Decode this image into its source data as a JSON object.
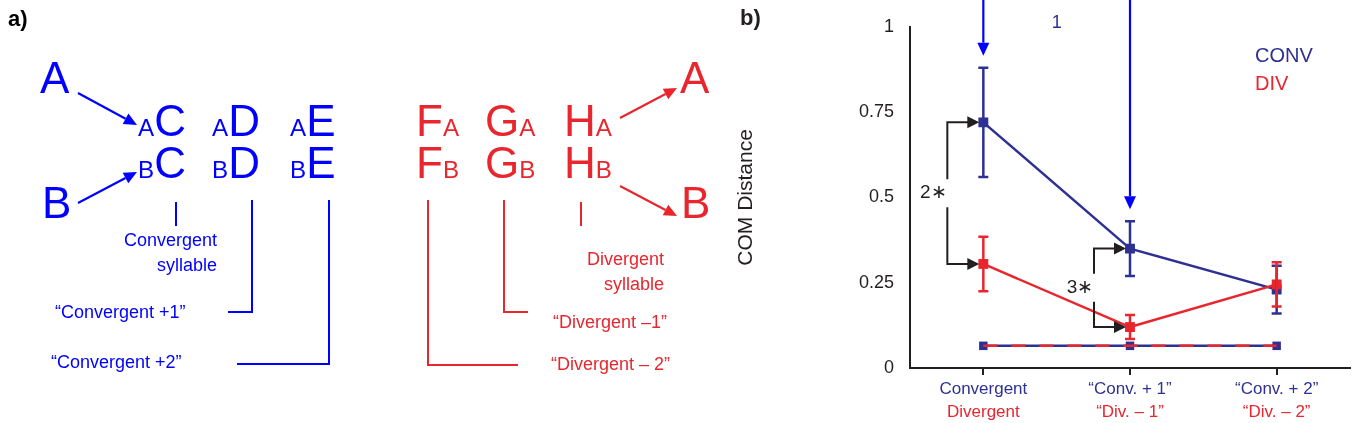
{
  "chart_data": [
    {
      "type": "other",
      "annotations": [
        "a)",
        "A",
        "B",
        "$_{A}$C",
        "$_{B}$C",
        "$_{A}$D",
        "$_{B}$D",
        "$_{A}$E",
        "$_{B}$E",
        "Convergent syllable",
        "“Convergent +1”",
        "“Convergent +2”",
        "F$_{A}$",
        "F$_{B}$",
        "G$_{A}$",
        "G$_{B}$",
        "H$_{A}$",
        "H$_{B}$",
        "A",
        "B",
        "Divergent syllable",
        "“Divergent –1”",
        "“Divergent – 2”"
      ]
    },
    {
      "type": "line",
      "ylabel": "COM Distance",
      "categories": [
        "Convergent",
        "“Conv. + 1”",
        "“Conv. + 2”"
      ],
      "ylim": [
        0,
        1
      ],
      "yticks": [
        0,
        0.25,
        0.5,
        0.75,
        1
      ],
      "marker": "square",
      "legend": "top right",
      "line_style": "solid",
      "series": [
        {
          "name": "CONV",
          "color": "#2e3192",
          "values": [
            0.72,
            0.35,
            0.23
          ],
          "errors": [
            0.16,
            0.08,
            0.07
          ]
        },
        {
          "name": "DIV",
          "color": "#e8262e",
          "values": [
            0.305,
            0.12,
            0.245
          ],
          "errors": [
            0.08,
            0.035,
            0.065
          ]
        },
        {
          "color": "#2e3192",
          "values": [
            0.065,
            0.065,
            0.065
          ]
        },
        {
          "color": "#e8262e",
          "values": [
            0.065,
            0.065,
            0.065
          ],
          "line_style": "dashed",
          "marker": "none"
        }
      ],
      "annotations": [
        "b)",
        "Divergent",
        "“Div. – 1”",
        "“Div. – 2”",
        "2∗",
        {
          "text": "3∗",
          "x": "“Conv. + 1”",
          "y": 0.12
        },
        "1"
      ]
    }
  ]
}
